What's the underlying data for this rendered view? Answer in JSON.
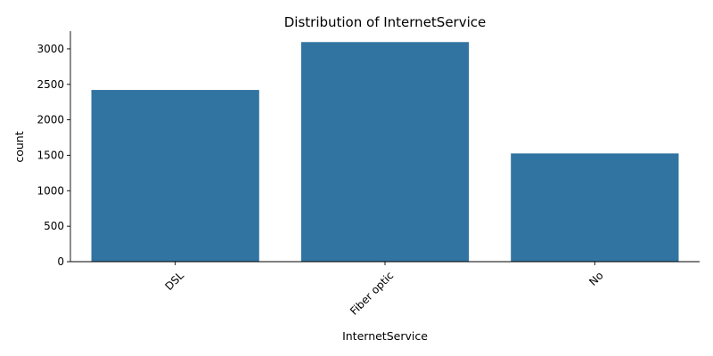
{
  "chart_data": {
    "type": "bar",
    "title": "Distribution of InternetService",
    "xlabel": "InternetService",
    "ylabel": "count",
    "categories": [
      "DSL",
      "Fiber optic",
      "No"
    ],
    "values": [
      2421,
      3096,
      1526
    ],
    "ylim": [
      0,
      3250
    ],
    "yticks": [
      0,
      500,
      1000,
      1500,
      2000,
      2500,
      3000
    ],
    "bar_color": "#3274a1",
    "grid": false,
    "x_tick_rotation_deg": 45
  }
}
